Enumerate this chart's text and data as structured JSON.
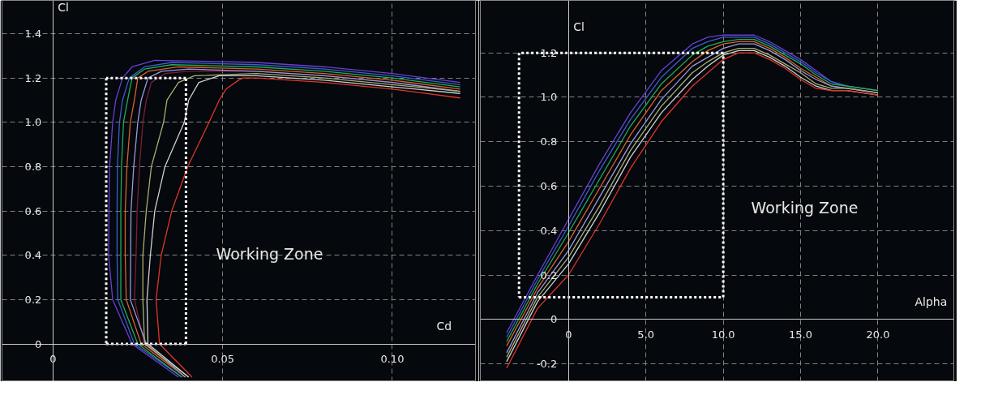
{
  "chart_data": [
    {
      "type": "line",
      "xlabel": "Cd",
      "ylabel": "Cl",
      "xlim": [
        -0.015,
        0.1245
      ],
      "ylim": [
        -0.17,
        1.55
      ],
      "xticks": [
        0,
        0.05,
        {
          "value": 0.1,
          "label": "0.10"
        }
      ],
      "yticks": [
        0,
        0.2,
        0.4,
        0.6,
        0.8,
        {
          "value": 1.0,
          "label": "1.0"
        },
        1.2,
        1.4
      ],
      "grid": true,
      "marker": "none",
      "line_style": "solid",
      "annotations": [
        "Working Zone"
      ],
      "series": [
        {
          "color": "#6a3fd8",
          "x": [
            0.037,
            0.0233,
            0.0176,
            0.0164,
            0.0165,
            0.0167,
            0.0176,
            0.0185,
            0.0205,
            0.0233,
            0.03,
            0.06,
            0.08,
            0.1,
            0.12
          ],
          "values": [
            -0.15,
            0,
            0.2,
            0.4,
            0.6,
            0.8,
            1.0,
            1.1,
            1.2,
            1.25,
            1.28,
            1.27,
            1.25,
            1.22,
            1.18
          ]
        },
        {
          "color": "#3a5fcf",
          "x": [
            0.038,
            0.024,
            0.0191,
            0.0189,
            0.0189,
            0.019,
            0.0196,
            0.0205,
            0.0225,
            0.027,
            0.035,
            0.06,
            0.08,
            0.1,
            0.12
          ],
          "values": [
            -0.15,
            0,
            0.2,
            0.4,
            0.6,
            0.8,
            1.0,
            1.1,
            1.2,
            1.25,
            1.27,
            1.26,
            1.24,
            1.21,
            1.17
          ]
        },
        {
          "color": "#1fae5a",
          "x": [
            0.038,
            0.025,
            0.02,
            0.02,
            0.02,
            0.0202,
            0.0208,
            0.022,
            0.0233,
            0.027,
            0.035,
            0.06,
            0.08,
            0.1,
            0.12
          ],
          "values": [
            -0.15,
            0,
            0.2,
            0.4,
            0.6,
            0.8,
            1.0,
            1.1,
            1.2,
            1.24,
            1.26,
            1.25,
            1.23,
            1.2,
            1.16
          ]
        },
        {
          "color": "#d8642a",
          "x": [
            0.039,
            0.026,
            0.0216,
            0.0213,
            0.0213,
            0.0218,
            0.0228,
            0.024,
            0.025,
            0.028,
            0.037,
            0.06,
            0.08,
            0.1,
            0.12
          ],
          "values": [
            -0.15,
            0,
            0.2,
            0.4,
            0.6,
            0.8,
            1.0,
            1.1,
            1.2,
            1.23,
            1.25,
            1.24,
            1.22,
            1.19,
            1.15
          ]
        },
        {
          "color": "#7a1f3b",
          "x": [
            0.039,
            0.027,
            0.024,
            0.0245,
            0.0248,
            0.0255,
            0.0265,
            0.0275,
            0.029,
            0.033,
            0.04,
            0.06,
            0.08,
            0.1,
            0.12
          ],
          "values": [
            -0.15,
            0,
            0.2,
            0.4,
            0.6,
            0.8,
            1.0,
            1.1,
            1.18,
            1.22,
            1.23,
            1.23,
            1.21,
            1.18,
            1.14
          ]
        },
        {
          "color": "#9a9ae0",
          "x": [
            0.039,
            0.0275,
            0.0228,
            0.0229,
            0.023,
            0.0238,
            0.025,
            0.026,
            0.028,
            0.032,
            0.04,
            0.06,
            0.08,
            0.1,
            0.12
          ],
          "values": [
            -0.15,
            0,
            0.2,
            0.4,
            0.6,
            0.8,
            1.0,
            1.1,
            1.2,
            1.23,
            1.24,
            1.23,
            1.21,
            1.18,
            1.14
          ]
        },
        {
          "color": "#a8b070",
          "x": [
            0.04,
            0.027,
            0.0265,
            0.0265,
            0.0275,
            0.029,
            0.0326,
            0.0336,
            0.037,
            0.0417,
            0.06,
            0.08,
            0.1,
            0.12
          ],
          "values": [
            -0.15,
            0,
            0.2,
            0.4,
            0.6,
            0.8,
            1.0,
            1.1,
            1.18,
            1.21,
            1.22,
            1.2,
            1.17,
            1.14
          ]
        },
        {
          "color": "#d0d0d0",
          "x": [
            0.04,
            0.028,
            0.0277,
            0.0287,
            0.03,
            0.033,
            0.0387,
            0.04,
            0.043,
            0.049,
            0.06,
            0.08,
            0.1,
            0.12
          ],
          "values": [
            -0.15,
            0,
            0.2,
            0.4,
            0.6,
            0.8,
            1.0,
            1.1,
            1.18,
            1.21,
            1.21,
            1.19,
            1.16,
            1.13
          ]
        },
        {
          "color": "#e0352b",
          "x": [
            0.041,
            0.0314,
            0.0304,
            0.0319,
            0.035,
            0.0397,
            0.046,
            0.049,
            0.051,
            0.0547,
            0.056,
            0.06,
            0.08,
            0.1,
            0.12
          ],
          "values": [
            -0.15,
            0,
            0.2,
            0.4,
            0.6,
            0.8,
            1.0,
            1.1,
            1.15,
            1.19,
            1.2,
            1.2,
            1.18,
            1.15,
            1.11
          ]
        },
        {
          "color": "#ffffff",
          "line_style": "dotted",
          "x": [
            0.0157,
            0.0392
          ],
          "values": [
            0,
            0
          ]
        },
        {
          "color": "#ffffff",
          "line_style": "dotted",
          "x": [
            0.0392,
            0.0392
          ],
          "values": [
            0,
            1.2
          ]
        },
        {
          "color": "#ffffff",
          "line_style": "dotted",
          "x": [
            0.0392,
            0.0157
          ],
          "values": [
            1.2,
            1.2
          ]
        },
        {
          "color": "#ffffff",
          "line_style": "dotted",
          "x": [
            0.0157,
            0.0157
          ],
          "values": [
            1.2,
            0
          ]
        }
      ]
    },
    {
      "type": "line",
      "xlabel": "Alpha",
      "ylabel": "Cl",
      "xlim": [
        -5.7,
        24.9
      ],
      "ylim": [
        -0.28,
        1.436
      ],
      "xticks": [
        0,
        {
          "value": 5,
          "label": "5.0"
        },
        {
          "value": 10,
          "label": "10.0"
        },
        {
          "value": 15,
          "label": "15.0"
        },
        {
          "value": 20,
          "label": "20.0"
        }
      ],
      "yticks": [
        -0.2,
        0,
        0.2,
        0.4,
        0.6,
        0.8,
        {
          "value": 1.0,
          "label": "1.0"
        },
        1.2
      ],
      "grid": true,
      "marker": "none",
      "line_style": "solid",
      "annotations": [
        "Working Zone"
      ],
      "x": [
        -4,
        -2,
        0,
        2,
        4,
        6,
        8,
        9,
        10,
        11,
        12,
        13,
        14,
        15,
        16,
        17,
        18,
        19,
        20
      ],
      "series": [
        {
          "color": "#6a3fd8",
          "values": [
            -0.06,
            0.2,
            0.45,
            0.7,
            0.93,
            1.12,
            1.24,
            1.27,
            1.28,
            1.28,
            1.28,
            1.25,
            1.21,
            1.17,
            1.12,
            1.07,
            1.05,
            1.04,
            1.03
          ]
        },
        {
          "color": "#3a5fcf",
          "values": [
            -0.08,
            0.18,
            0.42,
            0.67,
            0.9,
            1.09,
            1.22,
            1.25,
            1.27,
            1.27,
            1.27,
            1.24,
            1.2,
            1.16,
            1.11,
            1.07,
            1.05,
            1.04,
            1.03
          ]
        },
        {
          "color": "#1fae5a",
          "values": [
            -0.1,
            0.16,
            0.39,
            0.63,
            0.87,
            1.06,
            1.19,
            1.23,
            1.25,
            1.26,
            1.26,
            1.23,
            1.19,
            1.15,
            1.1,
            1.06,
            1.05,
            1.04,
            1.03
          ]
        },
        {
          "color": "#d8642a",
          "values": [
            -0.12,
            0.14,
            0.35,
            0.59,
            0.83,
            1.03,
            1.16,
            1.21,
            1.24,
            1.25,
            1.25,
            1.22,
            1.18,
            1.13,
            1.09,
            1.05,
            1.04,
            1.03,
            1.02
          ]
        },
        {
          "color": "#9a9ae0",
          "values": [
            -0.15,
            0.12,
            0.31,
            0.55,
            0.79,
            0.99,
            1.14,
            1.18,
            1.22,
            1.24,
            1.24,
            1.21,
            1.17,
            1.12,
            1.08,
            1.05,
            1.04,
            1.03,
            1.02
          ]
        },
        {
          "color": "#a8b070",
          "values": [
            -0.17,
            0.1,
            0.28,
            0.51,
            0.76,
            0.96,
            1.11,
            1.16,
            1.2,
            1.22,
            1.22,
            1.19,
            1.15,
            1.11,
            1.06,
            1.04,
            1.04,
            1.03,
            1.02
          ]
        },
        {
          "color": "#d0d0d0",
          "values": [
            -0.19,
            0.08,
            0.25,
            0.48,
            0.73,
            0.93,
            1.08,
            1.14,
            1.19,
            1.21,
            1.21,
            1.18,
            1.14,
            1.09,
            1.05,
            1.03,
            1.03,
            1.02,
            1.01
          ]
        },
        {
          "color": "#e0352b",
          "values": [
            -0.22,
            0.05,
            0.2,
            0.43,
            0.68,
            0.89,
            1.05,
            1.11,
            1.17,
            1.2,
            1.2,
            1.17,
            1.13,
            1.08,
            1.04,
            1.03,
            1.03,
            1.02,
            1.01
          ]
        },
        {
          "color": "#ffffff",
          "line_style": "dotted",
          "x": [
            -3.2,
            10
          ],
          "values": [
            0.1,
            0.1
          ]
        },
        {
          "color": "#ffffff",
          "line_style": "dotted",
          "x": [
            10,
            10
          ],
          "values": [
            0.1,
            1.2
          ]
        },
        {
          "color": "#ffffff",
          "line_style": "dotted",
          "x": [
            10,
            -3.2
          ],
          "values": [
            1.2,
            1.2
          ]
        },
        {
          "color": "#ffffff",
          "line_style": "dotted",
          "x": [
            -3.2,
            -3.2
          ],
          "values": [
            1.2,
            0.1
          ]
        }
      ]
    }
  ]
}
